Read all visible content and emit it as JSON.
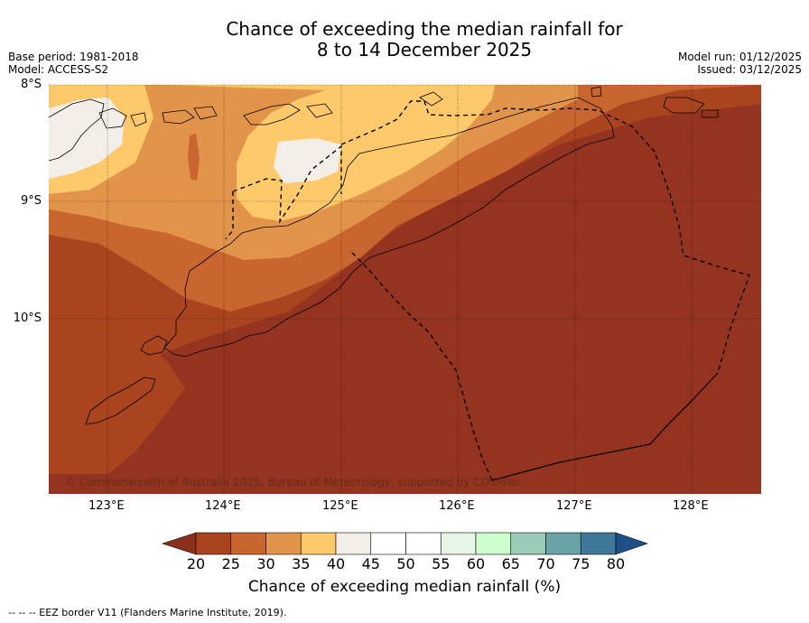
{
  "title": {
    "line1": "Chance of exceeding the median rainfall for",
    "line2": "8 to 14 December 2025"
  },
  "meta": {
    "base_period": "Base period: 1981-2018",
    "model": "Model: ACCESS-S2",
    "model_run": "Model run: 01/12/2025",
    "issued": "Issued: 03/12/2025"
  },
  "map": {
    "lat_labels": [
      "8°S",
      "9°S",
      "10°S"
    ],
    "lon_labels": [
      "123°E",
      "124°E",
      "125°E",
      "126°E",
      "127°E",
      "128°E"
    ],
    "copyright": "© Commonwealth of Australia 2025, Bureau of Meteorology, supported by COSPPac"
  },
  "colorbar": {
    "labels": [
      "20",
      "25",
      "30",
      "35",
      "40",
      "45",
      "50",
      "55",
      "60",
      "65",
      "70",
      "75",
      "80"
    ],
    "colors": [
      "#8b2f1e",
      "#a9441f",
      "#c9652e",
      "#e1944a",
      "#fdc96a",
      "#f3efe8",
      "#ffffff",
      "#ffffff",
      "#e8f6e6",
      "#ccffcc",
      "#9acbb6",
      "#6aa3a6",
      "#3f7898",
      "#1e4f86"
    ],
    "title": "Chance of exceeding median rainfall (%)"
  },
  "footnote": "--  --  -- EEZ border V11 (Flanders Marine Institute, 2019)."
}
